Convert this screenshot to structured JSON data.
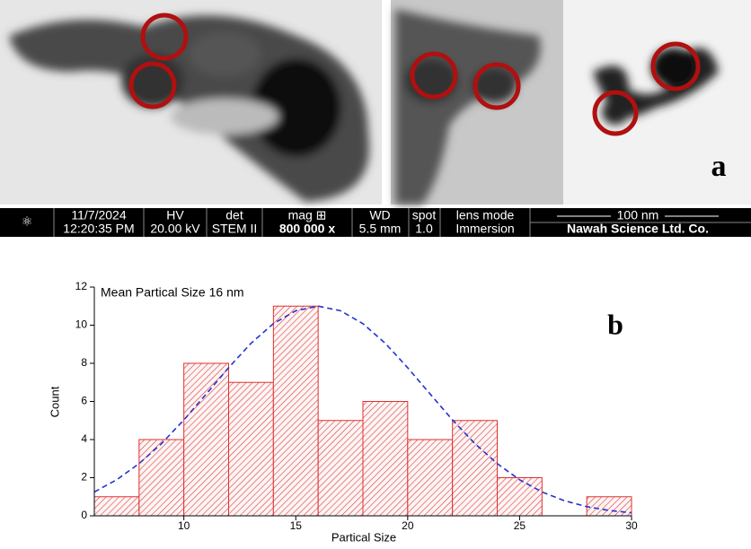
{
  "panel_labels": {
    "a": "a"
  },
  "info_bar": {
    "date": "11/7/2024",
    "time": "12:20:35 PM",
    "hv_label": "HV",
    "hv": "20.00 kV",
    "det_label": "det",
    "det": "STEM II",
    "mag_label": "mag ⊞",
    "mag": "800 000 x",
    "wd_label": "WD",
    "wd": "5.5 mm",
    "spot_label": "spot",
    "spot": "1.0",
    "lens_label": "lens mode",
    "lens": "Immersion",
    "scale": "100 nm",
    "company": "Nawah Science Ltd. Co."
  },
  "chart_data": {
    "type": "histogram",
    "annotation": "Mean Partical Size 16 nm",
    "panel_label": "b",
    "x_label": "Partical Size",
    "y_label": "Count",
    "bins": [
      6,
      8,
      10,
      12,
      14,
      16,
      18,
      20,
      22,
      24,
      26,
      28,
      30
    ],
    "counts": [
      1,
      4,
      8,
      7,
      11,
      5,
      6,
      4,
      5,
      2,
      0,
      1
    ],
    "color": "#e03030",
    "fit": {
      "color": "#2233cc",
      "x": [
        6,
        7,
        8,
        9,
        10,
        11,
        12,
        13,
        14,
        15,
        16,
        17,
        18,
        19,
        20,
        21,
        22,
        23,
        24,
        25,
        26,
        27,
        28,
        29,
        30
      ],
      "values": [
        1.25,
        1.89,
        2.74,
        3.79,
        5.03,
        6.39,
        7.77,
        9.05,
        10.08,
        10.76,
        11,
        10.76,
        10.08,
        9.05,
        7.77,
        6.39,
        5.03,
        3.79,
        2.74,
        1.89,
        1.25,
        0.79,
        0.48,
        0.28,
        0.16
      ]
    },
    "xlim": [
      6,
      30
    ],
    "xticks": [
      10,
      15,
      20,
      25,
      30
    ],
    "ylim": [
      0,
      12
    ],
    "yticks": [
      0,
      2,
      4,
      6,
      8,
      10,
      12
    ]
  }
}
